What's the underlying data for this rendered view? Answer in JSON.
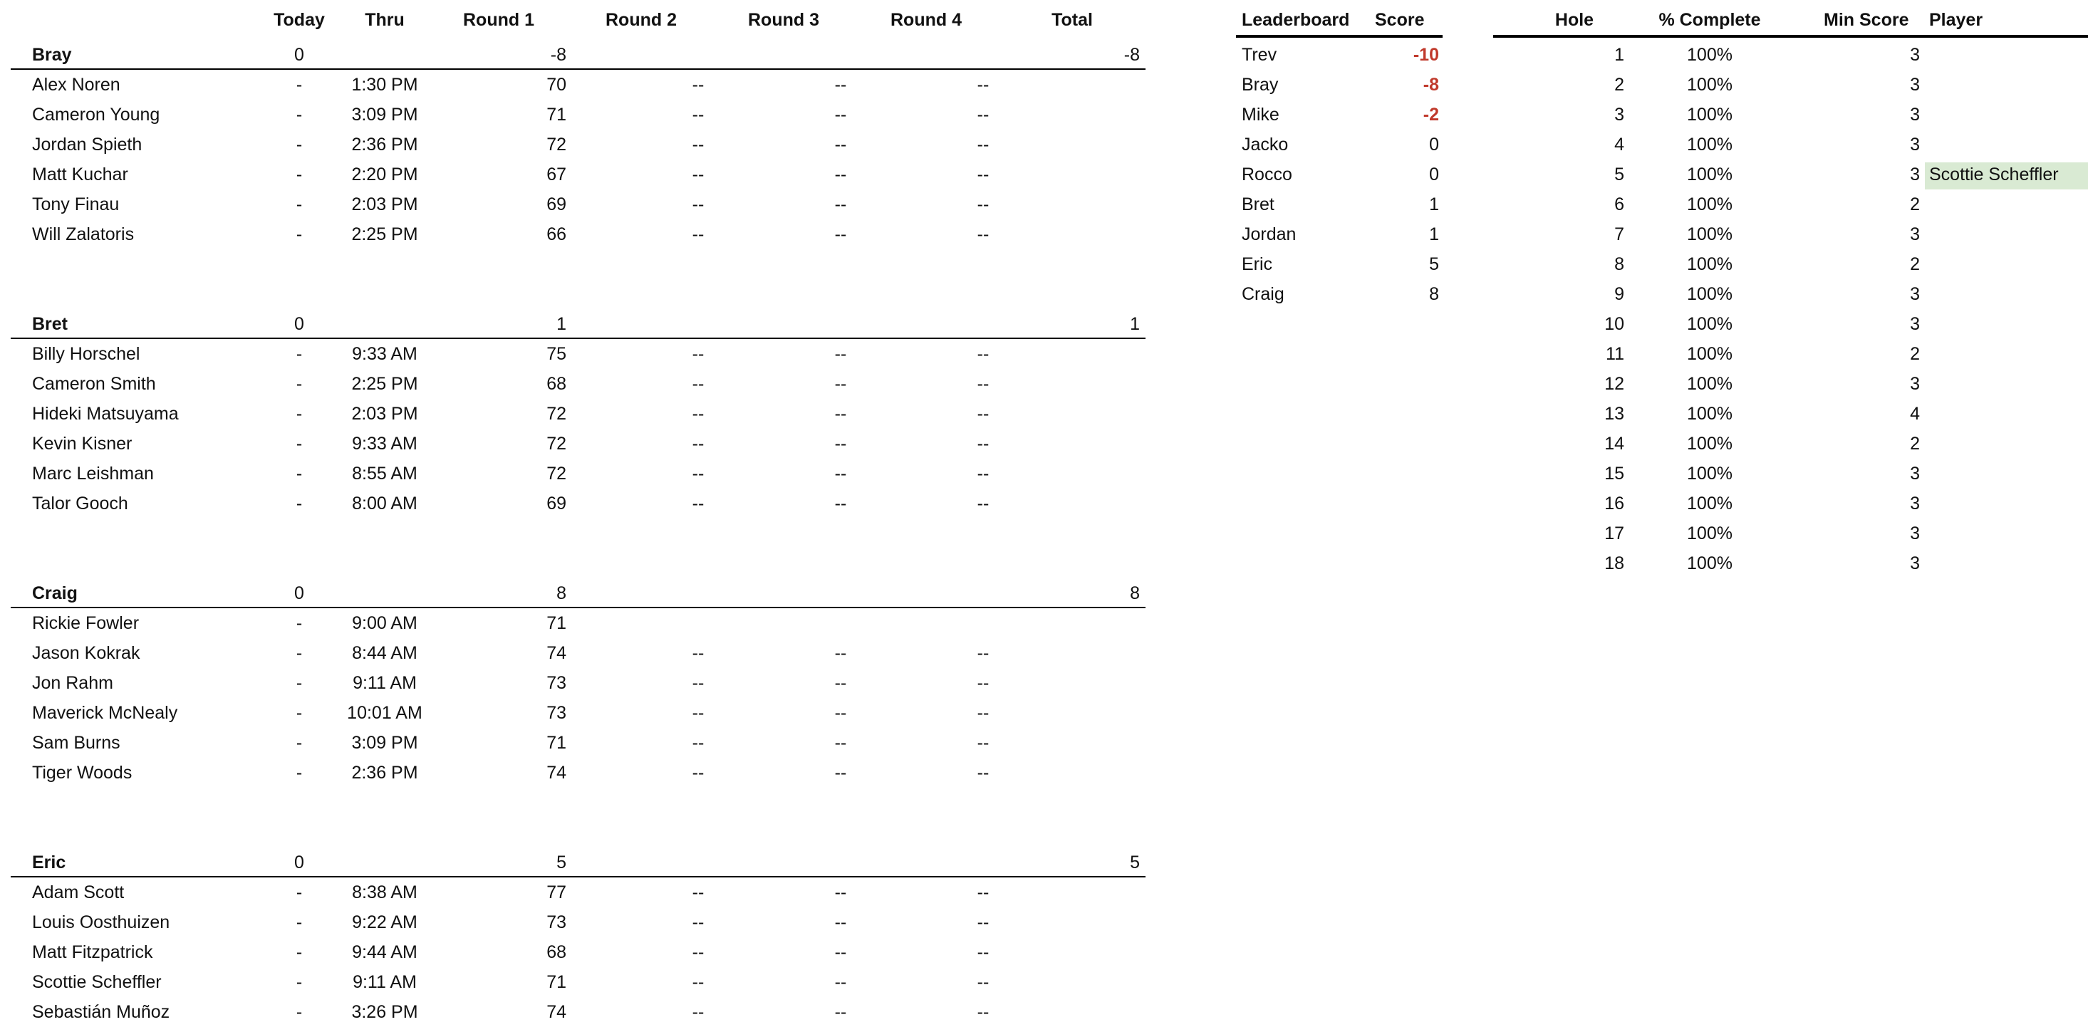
{
  "teams": {
    "headers": {
      "today": "Today",
      "thru": "Thru",
      "r1": "Round 1",
      "r2": "Round 2",
      "r3": "Round 3",
      "r4": "Round 4",
      "total": "Total"
    },
    "groups": [
      {
        "name": "Bray",
        "today": "0",
        "r1": "-8",
        "total": "-8",
        "players": [
          {
            "name": "Alex Noren",
            "today": "-",
            "thru": "1:30 PM",
            "r1": "70",
            "r2": "--",
            "r3": "--",
            "r4": "--"
          },
          {
            "name": "Cameron Young",
            "today": "-",
            "thru": "3:09 PM",
            "r1": "71",
            "r2": "--",
            "r3": "--",
            "r4": "--"
          },
          {
            "name": "Jordan Spieth",
            "today": "-",
            "thru": "2:36 PM",
            "r1": "72",
            "r2": "--",
            "r3": "--",
            "r4": "--"
          },
          {
            "name": "Matt Kuchar",
            "today": "-",
            "thru": "2:20 PM",
            "r1": "67",
            "r2": "--",
            "r3": "--",
            "r4": "--"
          },
          {
            "name": "Tony Finau",
            "today": "-",
            "thru": "2:03 PM",
            "r1": "69",
            "r2": "--",
            "r3": "--",
            "r4": "--"
          },
          {
            "name": "Will Zalatoris",
            "today": "-",
            "thru": "2:25 PM",
            "r1": "66",
            "r2": "--",
            "r3": "--",
            "r4": "--"
          }
        ]
      },
      {
        "name": "Bret",
        "today": "0",
        "r1": "1",
        "total": "1",
        "players": [
          {
            "name": "Billy Horschel",
            "today": "-",
            "thru": "9:33 AM",
            "r1": "75",
            "r2": "--",
            "r3": "--",
            "r4": "--"
          },
          {
            "name": "Cameron Smith",
            "today": "-",
            "thru": "2:25 PM",
            "r1": "68",
            "r2": "--",
            "r3": "--",
            "r4": "--"
          },
          {
            "name": "Hideki Matsuyama",
            "today": "-",
            "thru": "2:03 PM",
            "r1": "72",
            "r2": "--",
            "r3": "--",
            "r4": "--"
          },
          {
            "name": "Kevin Kisner",
            "today": "-",
            "thru": "9:33 AM",
            "r1": "72",
            "r2": "--",
            "r3": "--",
            "r4": "--"
          },
          {
            "name": "Marc Leishman",
            "today": "-",
            "thru": "8:55 AM",
            "r1": "72",
            "r2": "--",
            "r3": "--",
            "r4": "--"
          },
          {
            "name": "Talor Gooch",
            "today": "-",
            "thru": "8:00 AM",
            "r1": "69",
            "r2": "--",
            "r3": "--",
            "r4": "--"
          }
        ]
      },
      {
        "name": "Craig",
        "today": "0",
        "r1": "8",
        "total": "8",
        "players": [
          {
            "name": "Rickie Fowler",
            "today": "-",
            "thru": "9:00 AM",
            "r1": "71",
            "r2": "",
            "r3": "",
            "r4": ""
          },
          {
            "name": "Jason Kokrak",
            "today": "-",
            "thru": "8:44 AM",
            "r1": "74",
            "r2": "--",
            "r3": "--",
            "r4": "--"
          },
          {
            "name": "Jon Rahm",
            "today": "-",
            "thru": "9:11 AM",
            "r1": "73",
            "r2": "--",
            "r3": "--",
            "r4": "--"
          },
          {
            "name": "Maverick McNealy",
            "today": "-",
            "thru": "10:01 AM",
            "r1": "73",
            "r2": "--",
            "r3": "--",
            "r4": "--"
          },
          {
            "name": "Sam Burns",
            "today": "-",
            "thru": "3:09 PM",
            "r1": "71",
            "r2": "--",
            "r3": "--",
            "r4": "--"
          },
          {
            "name": "Tiger Woods",
            "today": "-",
            "thru": "2:36 PM",
            "r1": "74",
            "r2": "--",
            "r3": "--",
            "r4": "--"
          }
        ]
      },
      {
        "name": "Eric",
        "today": "0",
        "r1": "5",
        "total": "5",
        "players": [
          {
            "name": "Adam Scott",
            "today": "-",
            "thru": "8:38 AM",
            "r1": "77",
            "r2": "--",
            "r3": "--",
            "r4": "--"
          },
          {
            "name": "Louis Oosthuizen",
            "today": "-",
            "thru": "9:22 AM",
            "r1": "73",
            "r2": "--",
            "r3": "--",
            "r4": "--"
          },
          {
            "name": "Matt Fitzpatrick",
            "today": "-",
            "thru": "9:44 AM",
            "r1": "68",
            "r2": "--",
            "r3": "--",
            "r4": "--"
          },
          {
            "name": "Scottie Scheffler",
            "today": "-",
            "thru": "9:11 AM",
            "r1": "71",
            "r2": "--",
            "r3": "--",
            "r4": "--"
          },
          {
            "name": "Sebastián Muñoz",
            "today": "-",
            "thru": "3:26 PM",
            "r1": "74",
            "r2": "--",
            "r3": "--",
            "r4": "--"
          }
        ]
      }
    ]
  },
  "leaderboard": {
    "headers": {
      "name": "Leaderboard",
      "score": "Score"
    },
    "rows": [
      {
        "name": "Trev",
        "score": "-10",
        "red": true
      },
      {
        "name": "Bray",
        "score": "-8",
        "red": true
      },
      {
        "name": "Mike",
        "score": "-2",
        "red": true
      },
      {
        "name": "Jacko",
        "score": "0",
        "red": false
      },
      {
        "name": "Rocco",
        "score": "0",
        "red": false
      },
      {
        "name": "Bret",
        "score": "1",
        "red": false
      },
      {
        "name": "Jordan",
        "score": "1",
        "red": false
      },
      {
        "name": "Eric",
        "score": "5",
        "red": false
      },
      {
        "name": "Craig",
        "score": "8",
        "red": false
      }
    ],
    "negative_color": "#c0392b"
  },
  "holes": {
    "headers": {
      "hole": "Hole",
      "pct": "% Complete",
      "min": "Min Score",
      "player": "Player"
    },
    "rows": [
      {
        "hole": "1",
        "pct": "100%",
        "min": "3",
        "player": ""
      },
      {
        "hole": "2",
        "pct": "100%",
        "min": "3",
        "player": ""
      },
      {
        "hole": "3",
        "pct": "100%",
        "min": "3",
        "player": ""
      },
      {
        "hole": "4",
        "pct": "100%",
        "min": "3",
        "player": ""
      },
      {
        "hole": "5",
        "pct": "100%",
        "min": "3",
        "player": "Scottie Scheffler"
      },
      {
        "hole": "6",
        "pct": "100%",
        "min": "2",
        "player": ""
      },
      {
        "hole": "7",
        "pct": "100%",
        "min": "3",
        "player": ""
      },
      {
        "hole": "8",
        "pct": "100%",
        "min": "2",
        "player": ""
      },
      {
        "hole": "9",
        "pct": "100%",
        "min": "3",
        "player": ""
      },
      {
        "hole": "10",
        "pct": "100%",
        "min": "3",
        "player": ""
      },
      {
        "hole": "11",
        "pct": "100%",
        "min": "2",
        "player": ""
      },
      {
        "hole": "12",
        "pct": "100%",
        "min": "3",
        "player": ""
      },
      {
        "hole": "13",
        "pct": "100%",
        "min": "4",
        "player": ""
      },
      {
        "hole": "14",
        "pct": "100%",
        "min": "2",
        "player": ""
      },
      {
        "hole": "15",
        "pct": "100%",
        "min": "3",
        "player": ""
      },
      {
        "hole": "16",
        "pct": "100%",
        "min": "3",
        "player": ""
      },
      {
        "hole": "17",
        "pct": "100%",
        "min": "3",
        "player": ""
      },
      {
        "hole": "18",
        "pct": "100%",
        "min": "3",
        "player": ""
      }
    ],
    "highlight_color": "#d9ead3"
  }
}
